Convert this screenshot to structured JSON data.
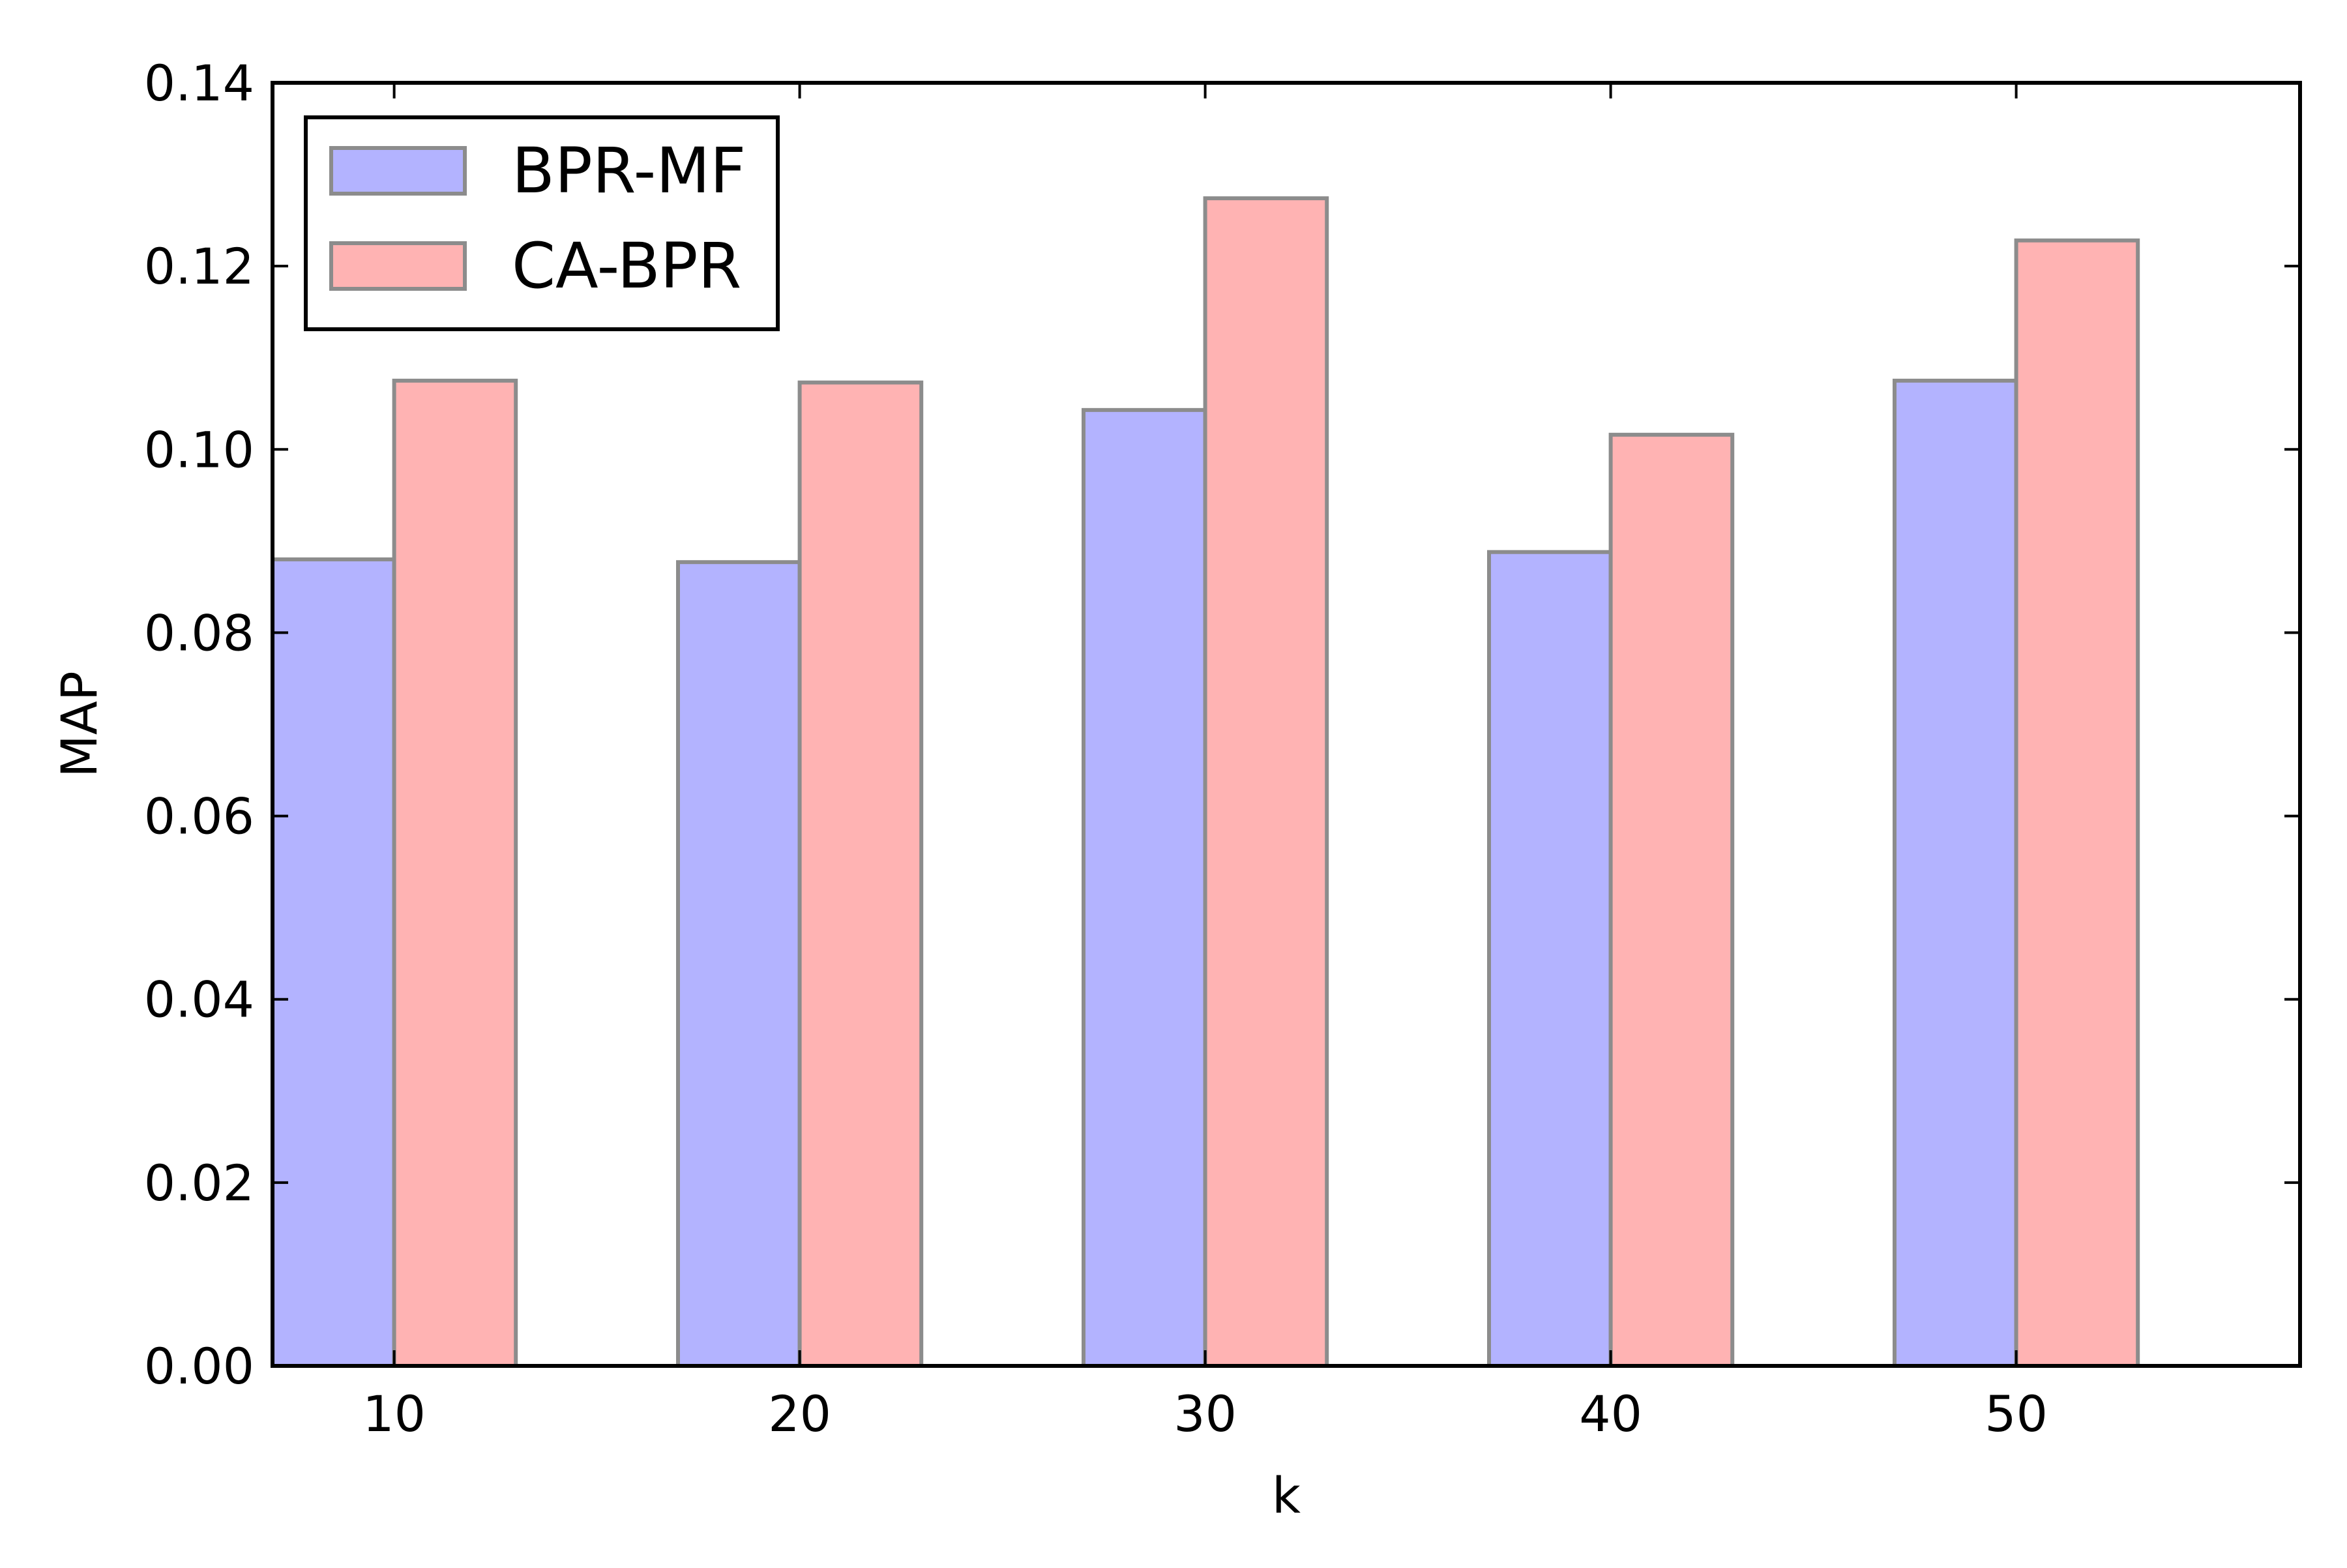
{
  "chart_data": {
    "type": "bar",
    "title": "",
    "xlabel": "k",
    "ylabel": "MAP",
    "categories": [
      "10",
      "20",
      "30",
      "40",
      "50"
    ],
    "x": [
      10,
      20,
      30,
      40,
      50
    ],
    "xlim": [
      7,
      57
    ],
    "ylim": [
      0,
      0.14
    ],
    "yticks": [
      0.0,
      0.02,
      0.04,
      0.06,
      0.08,
      0.1,
      0.12,
      0.14
    ],
    "ytick_labels": [
      "0.00",
      "0.02",
      "0.04",
      "0.06",
      "0.08",
      "0.10",
      "0.12",
      "0.14"
    ],
    "grid": false,
    "legend_position": "top-left",
    "bar_width_units": 3,
    "series": [
      {
        "name": "BPR-MF",
        "color": "#b3b3ff",
        "values": [
          0.088,
          0.0877,
          0.1043,
          0.0888,
          0.1075
        ]
      },
      {
        "name": "CA-BPR",
        "color": "#ffb3b3",
        "values": [
          0.1075,
          0.1073,
          0.1274,
          0.1016,
          0.1228
        ]
      }
    ],
    "bar_edge_color": "#8c8c8c"
  }
}
